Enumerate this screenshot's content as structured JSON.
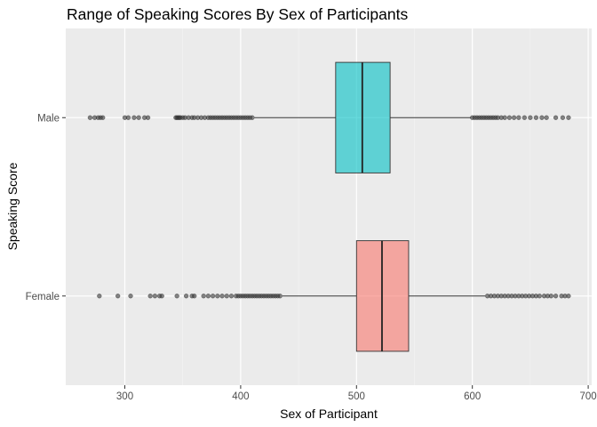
{
  "chart_data": {
    "type": "boxplot",
    "orientation": "horizontal",
    "title": "Range of Speaking Scores By Sex of Participants",
    "xlabel": "Sex of Participant",
    "ylabel": "Speaking Score",
    "xlim": [
      249,
      703
    ],
    "x_ticks": [
      300,
      400,
      500,
      600,
      700
    ],
    "categories": [
      "Female",
      "Male"
    ],
    "grid": true,
    "legend": "none",
    "series": [
      {
        "category": "Male",
        "color": "#00BFC4",
        "whisker_low": 412,
        "q1": 482,
        "median": 505,
        "q3": 529,
        "whisker_high": 599,
        "outliers": [
          270,
          274,
          277,
          279,
          281,
          300,
          303,
          308,
          312,
          317,
          320,
          344,
          345,
          346,
          347,
          348,
          350,
          352,
          355,
          358,
          360,
          363,
          366,
          369,
          372,
          374,
          376,
          378,
          380,
          382,
          384,
          386,
          388,
          390,
          392,
          394,
          396,
          398,
          400,
          402,
          404,
          406,
          408,
          410,
          600,
          602,
          604,
          606,
          608,
          610,
          612,
          614,
          616,
          618,
          620,
          622,
          625,
          628,
          632,
          636,
          640,
          645,
          650,
          655,
          660,
          664,
          672,
          678,
          683
        ]
      },
      {
        "category": "Female",
        "color": "#F8766D",
        "whisker_low": 436,
        "q1": 500,
        "median": 522,
        "q3": 545,
        "whisker_high": 611,
        "outliers": [
          278,
          294,
          305,
          322,
          326,
          330,
          332,
          345,
          353,
          358,
          360,
          368,
          372,
          376,
          380,
          384,
          388,
          392,
          396,
          398,
          400,
          402,
          404,
          406,
          408,
          410,
          412,
          414,
          416,
          418,
          420,
          422,
          424,
          426,
          428,
          430,
          432,
          434,
          613,
          616,
          619,
          622,
          625,
          628,
          631,
          634,
          637,
          640,
          643,
          646,
          649,
          652,
          655,
          658,
          662,
          665,
          668,
          672,
          677,
          680,
          683
        ]
      }
    ]
  }
}
